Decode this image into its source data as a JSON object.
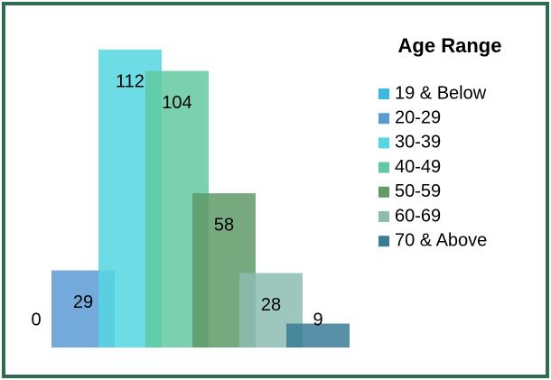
{
  "chart_data": {
    "type": "bar",
    "legend_title": "Age Range",
    "legend": "right",
    "ylim": [
      0,
      112
    ],
    "series": [
      {
        "name": "19 & Below",
        "color": "#3fb8e0",
        "values": [
          0
        ]
      },
      {
        "name": "20-29",
        "color": "#5b9bd5",
        "values": [
          29
        ]
      },
      {
        "name": "30-39",
        "color": "#55d6e0",
        "values": [
          112
        ]
      },
      {
        "name": "40-49",
        "color": "#62c9a2",
        "values": [
          104
        ]
      },
      {
        "name": "50-59",
        "color": "#5f9a68",
        "values": [
          58
        ]
      },
      {
        "name": "60-69",
        "color": "#8cbcb0",
        "values": [
          28
        ]
      },
      {
        "name": "70 & Above",
        "color": "#3a7d98",
        "values": [
          9
        ]
      }
    ]
  }
}
